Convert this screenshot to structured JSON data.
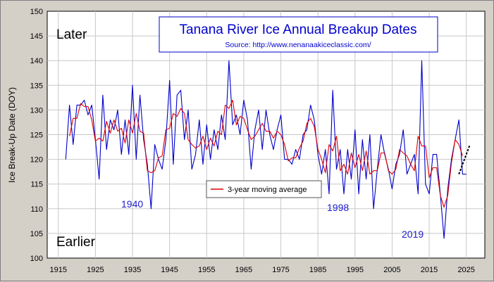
{
  "chart_data": {
    "type": "line",
    "title": "Tanana River Ice Annual Breakup Dates",
    "subtitle": "Source: http://www.nenanaakiceclassic.com/",
    "xlabel": "",
    "ylabel": "Ice Break-Up Date (DOY)",
    "xlim": [
      1912,
      2030
    ],
    "ylim": [
      100,
      150
    ],
    "xticks": [
      1915,
      1925,
      1935,
      1945,
      1955,
      1965,
      1975,
      1985,
      1995,
      2005,
      2015,
      2025
    ],
    "xtick_labels": [
      "1915",
      "1925",
      "1935",
      "1945",
      "1955",
      "1965",
      "1975",
      "1985",
      "1995",
      "2005",
      "2015",
      "2025"
    ],
    "yticks": [
      100,
      105,
      110,
      115,
      120,
      125,
      130,
      135,
      140,
      145,
      150
    ],
    "ytick_labels": [
      "100",
      "105",
      "110",
      "115",
      "120",
      "125",
      "130",
      "135",
      "140",
      "145",
      "150"
    ],
    "grid": true,
    "legend_position": "center-left",
    "annotations": {
      "later": "Later",
      "earlier": "Earlier",
      "y1940": "1940",
      "y1998": "1998",
      "y2019": "2019"
    },
    "colors": {
      "annual": "#0000cc",
      "moving_average": "#dd0000",
      "trend": "#000000",
      "title_box": "#0000cc"
    },
    "series": [
      {
        "key": "annual",
        "x": [
          1917,
          1918,
          1919,
          1920,
          1921,
          1922,
          1923,
          1924,
          1925,
          1926,
          1927,
          1928,
          1929,
          1930,
          1931,
          1932,
          1933,
          1934,
          1935,
          1936,
          1937,
          1938,
          1939,
          1940,
          1941,
          1942,
          1943,
          1944,
          1945,
          1946,
          1947,
          1948,
          1949,
          1950,
          1951,
          1952,
          1953,
          1954,
          1955,
          1956,
          1957,
          1958,
          1959,
          1960,
          1961,
          1962,
          1963,
          1964,
          1965,
          1966,
          1967,
          1968,
          1969,
          1970,
          1971,
          1972,
          1973,
          1974,
          1975,
          1976,
          1977,
          1978,
          1979,
          1980,
          1981,
          1982,
          1983,
          1984,
          1985,
          1986,
          1987,
          1988,
          1989,
          1990,
          1991,
          1992,
          1993,
          1994,
          1995,
          1996,
          1997,
          1998,
          1999,
          2000,
          2001,
          2002,
          2003,
          2004,
          2005,
          2006,
          2007,
          2008,
          2009,
          2010,
          2011,
          2012,
          2013,
          2014,
          2015,
          2016,
          2017,
          2018,
          2019,
          2020,
          2021,
          2022,
          2023,
          2024,
          2025
        ],
        "values": [
          120,
          131,
          123,
          131,
          131,
          132,
          129,
          131,
          124,
          116,
          133,
          122,
          128,
          126,
          130,
          121,
          128,
          121,
          135,
          120,
          133,
          124,
          119,
          110,
          123,
          120,
          118,
          124,
          136,
          119,
          133,
          134,
          124,
          130,
          118,
          121,
          128,
          119,
          127,
          120,
          126,
          122,
          129,
          124,
          140,
          127,
          129,
          125,
          132,
          128,
          118,
          126,
          130,
          122,
          130,
          125,
          122,
          126,
          129,
          120,
          120,
          119,
          122,
          120,
          125,
          126,
          131,
          128,
          121,
          117,
          122,
          113,
          134,
          118,
          122,
          113,
          122,
          116,
          126,
          113,
          124,
          116,
          125,
          110,
          118,
          125,
          121,
          118,
          114,
          119,
          121,
          126,
          117,
          119,
          121,
          113,
          140,
          115,
          113,
          121,
          121,
          113,
          104,
          114,
          120,
          124,
          128,
          117,
          117
        ]
      },
      {
        "key": "moving_average",
        "name": "3-year moving average",
        "x": [
          1918,
          1919,
          1920,
          1921,
          1922,
          1923,
          1924,
          1925,
          1926,
          1927,
          1928,
          1929,
          1930,
          1931,
          1932,
          1933,
          1934,
          1935,
          1936,
          1937,
          1938,
          1939,
          1940,
          1941,
          1942,
          1943,
          1944,
          1945,
          1946,
          1947,
          1948,
          1949,
          1950,
          1951,
          1952,
          1953,
          1954,
          1955,
          1956,
          1957,
          1958,
          1959,
          1960,
          1961,
          1962,
          1963,
          1964,
          1965,
          1966,
          1967,
          1968,
          1969,
          1970,
          1971,
          1972,
          1973,
          1974,
          1975,
          1976,
          1977,
          1978,
          1979,
          1980,
          1981,
          1982,
          1983,
          1984,
          1985,
          1986,
          1987,
          1988,
          1989,
          1990,
          1991,
          1992,
          1993,
          1994,
          1995,
          1996,
          1997,
          1998,
          1999,
          2000,
          2001,
          2002,
          2003,
          2004,
          2005,
          2006,
          2007,
          2008,
          2009,
          2010,
          2011,
          2012,
          2013,
          2014,
          2015,
          2016,
          2017,
          2018,
          2019,
          2020,
          2021,
          2022,
          2023,
          2024
        ],
        "values": [
          124.7,
          128.3,
          128.3,
          131.3,
          130.7,
          130.7,
          128,
          123.7,
          124.3,
          123.7,
          127.7,
          125.3,
          128,
          125.7,
          126.3,
          123.3,
          128,
          125.3,
          129.3,
          125.7,
          125.3,
          117.7,
          117.3,
          117.7,
          120.3,
          120.7,
          126,
          126.3,
          129.3,
          128.7,
          130.3,
          129.3,
          124,
          123,
          122.3,
          122.7,
          124.7,
          122,
          124.3,
          122.7,
          125.7,
          125,
          131,
          130.3,
          132,
          127,
          128.7,
          128.3,
          126,
          124,
          124.7,
          126,
          127.3,
          125.7,
          125.7,
          124.3,
          125.7,
          125,
          123,
          119.7,
          120.3,
          120.3,
          122.3,
          123.7,
          127.3,
          128.3,
          126.7,
          122,
          120,
          117.3,
          123,
          121.7,
          124.7,
          117.7,
          119,
          117,
          121.3,
          118.3,
          121,
          117.7,
          121.7,
          117,
          117.7,
          117.7,
          121.3,
          121.3,
          117.7,
          117,
          118,
          122,
          121.3,
          120.7,
          119,
          117.7,
          124.7,
          122.7,
          122.7,
          116.3,
          118.3,
          118.3,
          112.7,
          110.3,
          112.7,
          119.3,
          124,
          123,
          120.7
        ]
      },
      {
        "key": "trend",
        "x": [
          2023,
          2026
        ],
        "values": [
          117,
          123
        ]
      }
    ]
  }
}
